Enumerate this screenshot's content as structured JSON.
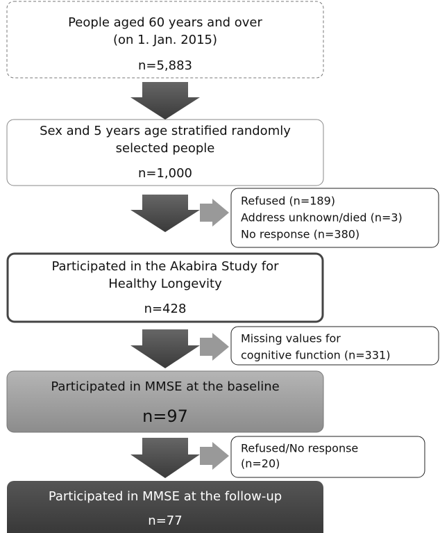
{
  "nodes": [
    {
      "lines": [
        "People aged 60 years and over",
        "(on 1. Jan. 2015)"
      ],
      "n": "n=5,883"
    },
    {
      "lines": [
        "Sex and 5 years age stratified randomly",
        "selected people"
      ],
      "n": "n=1,000"
    },
    {
      "lines": [
        "Participated in the Akabira Study for",
        "Healthy Longevity"
      ],
      "n": "n=428"
    },
    {
      "lines": [
        "Participated in MMSE at the baseline"
      ],
      "n": "n=97"
    },
    {
      "lines": [
        "Participated in MMSE at the follow-up"
      ],
      "n": "n=77"
    }
  ],
  "notes": [
    {
      "lines": [
        "Refused (n=189)",
        "Address unknown/died (n=3)",
        "No response (n=380)"
      ]
    },
    {
      "lines": [
        "Missing values for",
        "cognitive function (n=331)"
      ]
    },
    {
      "lines": [
        "Refused/No response",
        "(n=20)"
      ]
    }
  ]
}
